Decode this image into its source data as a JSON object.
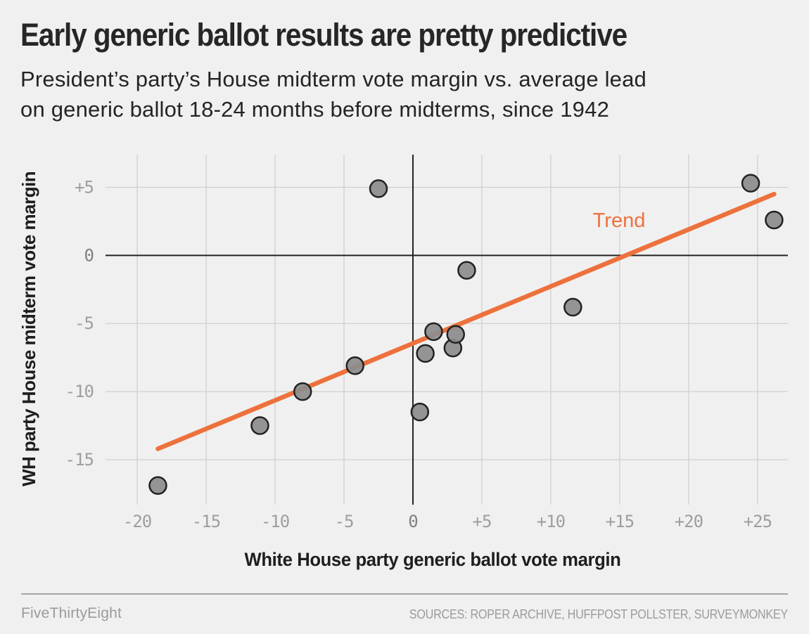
{
  "header": {
    "title": "Early generic ballot results are pretty predictive",
    "subtitle_lines": [
      "President’s party’s House midterm vote margin vs. average lead",
      "on generic ballot 18-24 months before midterms, since 1942"
    ]
  },
  "chart_data": {
    "type": "scatter",
    "title": "Early generic ballot results are pretty predictive",
    "subtitle": "President’s party’s House midterm vote margin vs. average lead on generic ballot 18-24 months before midterms, since 1942",
    "xlabel": "White House party generic ballot vote margin",
    "ylabel": "WH party House midterm vote margin",
    "xlim": [
      -22.3,
      27.2
    ],
    "ylim": [
      -18.15,
      7.4
    ],
    "grid": true,
    "x_tick_values": [
      -20,
      -15,
      -10,
      -5,
      0,
      5,
      10,
      15,
      20,
      25
    ],
    "x_tick_labels": [
      "-20",
      "-15",
      "-10",
      "-5",
      "0",
      "+5",
      "+10",
      "+15",
      "+20",
      "+25"
    ],
    "y_tick_values": [
      5,
      0,
      -5,
      -10,
      -15
    ],
    "y_tick_labels": [
      "+5",
      "0",
      "-5",
      "-10",
      "-15"
    ],
    "points": [
      {
        "x": -18.5,
        "y": -16.9
      },
      {
        "x": -11.1,
        "y": -12.5
      },
      {
        "x": -8.0,
        "y": -10.0
      },
      {
        "x": -4.2,
        "y": -8.1
      },
      {
        "x": -2.5,
        "y": 4.9
      },
      {
        "x": 0.5,
        "y": -11.5
      },
      {
        "x": 0.9,
        "y": -7.2
      },
      {
        "x": 1.5,
        "y": -5.6
      },
      {
        "x": 2.9,
        "y": -6.8
      },
      {
        "x": 3.1,
        "y": -5.8
      },
      {
        "x": 3.9,
        "y": -1.1
      },
      {
        "x": 11.6,
        "y": -3.8
      },
      {
        "x": 24.5,
        "y": 5.3
      },
      {
        "x": 26.2,
        "y": 2.6
      }
    ],
    "trend": {
      "label": "Trend",
      "x1": -18.5,
      "y1": -14.2,
      "x2": 26.2,
      "y2": 4.5
    },
    "legend_position": "inline-label"
  },
  "footer": {
    "brand": "FiveThirtyEight",
    "sources": "SOURCES: ROPER ARCHIVE, HUFFPOST POLLSTER, SURVEYMONKEY"
  },
  "colors": {
    "background": "#f0f0f0",
    "gridline": "#d0d0d0",
    "zero_line": "#232323",
    "trend_orange": "#ed713c",
    "point_fill": "#8c8c8c",
    "point_stroke": "#222222",
    "tick_label": "#9e9e9e",
    "zero_tick_label": "#808080",
    "text_dark": "#1e1e1e",
    "footer_gray": "#9b9b9b"
  }
}
